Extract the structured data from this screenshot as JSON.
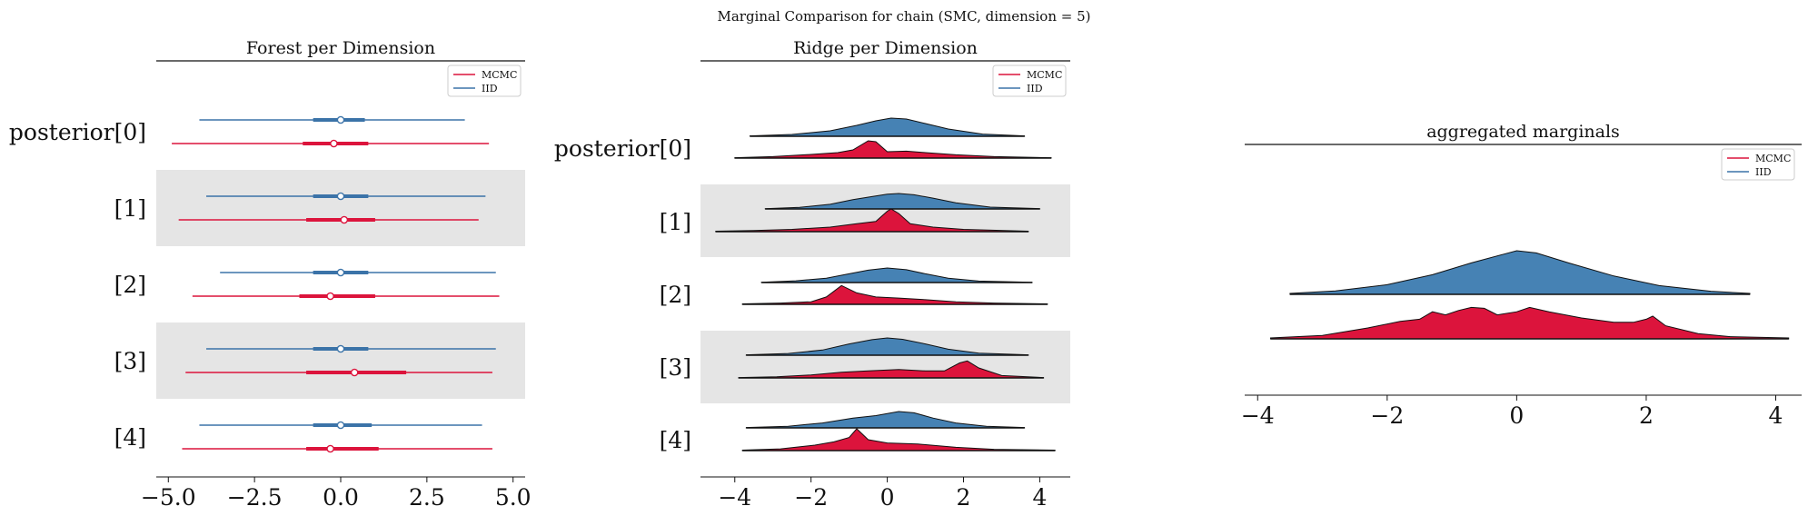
{
  "suptitle": "Marginal Comparison for chain (SMC, dimension = 5)",
  "row_labels": [
    "posterior[0]",
    "[1]",
    "[2]",
    "[3]",
    "[4]"
  ],
  "legend": [
    {
      "label": "MCMC",
      "color": "#dc143c"
    },
    {
      "label": "IID",
      "color": "#3b73a8"
    }
  ],
  "colors": {
    "mcmc": "#dc143c",
    "iid": "#3b73a8",
    "iid_fill": "#4682b4",
    "band": "#e5e5e5"
  },
  "chart_data": [
    {
      "type": "forest",
      "title": "Forest per Dimension",
      "xlim": [
        -5.35,
        5.35
      ],
      "xticks": [
        -5.0,
        -2.5,
        0.0,
        2.5,
        5.0
      ],
      "xtick_labels": [
        "−5.0",
        "−2.5",
        "0.0",
        "2.5",
        "5.0"
      ],
      "categories": [
        "posterior[0]",
        "[1]",
        "[2]",
        "[3]",
        "[4]"
      ],
      "series": [
        {
          "name": "IID",
          "rows": [
            {
              "lo": -4.1,
              "q1": -0.8,
              "med": 0.0,
              "q3": 0.7,
              "hi": 3.6
            },
            {
              "lo": -3.9,
              "q1": -0.8,
              "med": 0.0,
              "q3": 0.8,
              "hi": 4.2
            },
            {
              "lo": -3.5,
              "q1": -0.8,
              "med": 0.0,
              "q3": 0.8,
              "hi": 4.5
            },
            {
              "lo": -3.9,
              "q1": -0.8,
              "med": 0.0,
              "q3": 0.8,
              "hi": 4.5
            },
            {
              "lo": -4.1,
              "q1": -0.8,
              "med": 0.0,
              "q3": 0.9,
              "hi": 4.1
            }
          ]
        },
        {
          "name": "MCMC",
          "rows": [
            {
              "lo": -4.9,
              "q1": -1.1,
              "med": -0.2,
              "q3": 0.8,
              "hi": 4.3
            },
            {
              "lo": -4.7,
              "q1": -1.0,
              "med": 0.1,
              "q3": 1.0,
              "hi": 4.0
            },
            {
              "lo": -4.3,
              "q1": -1.2,
              "med": -0.3,
              "q3": 1.0,
              "hi": 4.6
            },
            {
              "lo": -4.5,
              "q1": -1.0,
              "med": 0.4,
              "q3": 1.9,
              "hi": 4.4
            },
            {
              "lo": -4.6,
              "q1": -1.0,
              "med": -0.3,
              "q3": 1.1,
              "hi": 4.4
            }
          ]
        }
      ]
    },
    {
      "type": "ridge",
      "title": "Ridge per Dimension",
      "xlim": [
        -4.9,
        4.8
      ],
      "xticks": [
        -4,
        -2,
        0,
        2,
        4
      ],
      "xtick_labels": [
        "−4",
        "−2",
        "0",
        "2",
        "4"
      ],
      "categories": [
        "posterior[0]",
        "[1]",
        "[2]",
        "[3]",
        "[4]"
      ],
      "series": [
        {
          "name": "IID",
          "rows": [
            {
              "x": [
                -3.6,
                -2.5,
                -1.5,
                -0.8,
                -0.3,
                0.1,
                0.5,
                1.0,
                1.6,
                2.5,
                3.6
              ],
              "y": [
                0.02,
                0.1,
                0.3,
                0.6,
                0.85,
                1.0,
                0.95,
                0.7,
                0.4,
                0.12,
                0.02
              ]
            },
            {
              "x": [
                -3.2,
                -2.3,
                -1.5,
                -0.9,
                -0.4,
                0.0,
                0.3,
                0.7,
                1.2,
                1.8,
                2.7,
                4.0
              ],
              "y": [
                0.02,
                0.1,
                0.3,
                0.6,
                0.8,
                0.95,
                1.0,
                0.92,
                0.7,
                0.4,
                0.12,
                0.02
              ]
            },
            {
              "x": [
                -3.3,
                -2.4,
                -1.6,
                -1.0,
                -0.5,
                0.0,
                0.5,
                1.0,
                1.6,
                2.4,
                3.8
              ],
              "y": [
                0.02,
                0.12,
                0.3,
                0.6,
                0.85,
                1.0,
                0.88,
                0.6,
                0.3,
                0.1,
                0.02
              ]
            },
            {
              "x": [
                -3.7,
                -2.6,
                -1.7,
                -1.0,
                -0.4,
                0.0,
                0.4,
                1.0,
                1.6,
                2.4,
                3.7
              ],
              "y": [
                0.02,
                0.1,
                0.3,
                0.65,
                0.9,
                1.0,
                0.92,
                0.65,
                0.35,
                0.12,
                0.02
              ]
            },
            {
              "x": [
                -3.7,
                -2.6,
                -1.7,
                -0.9,
                -0.3,
                0.3,
                0.7,
                1.2,
                1.8,
                2.6,
                3.6
              ],
              "y": [
                0.02,
                0.1,
                0.3,
                0.6,
                0.75,
                1.0,
                0.92,
                0.6,
                0.3,
                0.1,
                0.02
              ]
            }
          ]
        },
        {
          "name": "MCMC",
          "rows": [
            {
              "x": [
                -4.0,
                -3.0,
                -2.0,
                -1.3,
                -0.9,
                -0.5,
                -0.3,
                0.0,
                0.5,
                1.0,
                1.8,
                2.8,
                4.3
              ],
              "y": [
                0.02,
                0.08,
                0.2,
                0.3,
                0.45,
                0.95,
                0.9,
                0.35,
                0.38,
                0.3,
                0.18,
                0.08,
                0.02
              ]
            },
            {
              "x": [
                -4.5,
                -3.5,
                -2.5,
                -1.5,
                -0.8,
                -0.3,
                0.0,
                0.1,
                0.3,
                0.6,
                1.2,
                2.0,
                3.7
              ],
              "y": [
                0.02,
                0.05,
                0.1,
                0.2,
                0.35,
                0.45,
                0.9,
                1.0,
                0.8,
                0.35,
                0.2,
                0.1,
                0.02
              ]
            },
            {
              "x": [
                -3.8,
                -2.8,
                -2.0,
                -1.6,
                -1.2,
                -0.8,
                -0.3,
                0.3,
                1.0,
                1.8,
                2.8,
                4.2
              ],
              "y": [
                0.02,
                0.06,
                0.12,
                0.35,
                0.9,
                0.55,
                0.35,
                0.3,
                0.22,
                0.12,
                0.06,
                0.02
              ]
            },
            {
              "x": [
                -3.9,
                -2.9,
                -2.0,
                -1.2,
                -0.5,
                0.3,
                1.0,
                1.5,
                1.9,
                2.1,
                2.4,
                3.0,
                4.1
              ],
              "y": [
                0.02,
                0.06,
                0.15,
                0.28,
                0.35,
                0.42,
                0.35,
                0.35,
                0.75,
                0.85,
                0.5,
                0.12,
                0.02
              ]
            },
            {
              "x": [
                -3.8,
                -2.8,
                -1.9,
                -1.4,
                -1.0,
                -0.8,
                -0.5,
                0.0,
                0.8,
                1.8,
                2.8,
                4.4
              ],
              "y": [
                0.02,
                0.08,
                0.25,
                0.4,
                0.6,
                1.0,
                0.5,
                0.35,
                0.3,
                0.15,
                0.06,
                0.02
              ]
            }
          ]
        }
      ]
    },
    {
      "type": "ridge",
      "title": "aggregated marginals",
      "xlim": [
        -4.2,
        4.4
      ],
      "xticks": [
        -4,
        -2,
        0,
        2,
        4
      ],
      "xtick_labels": [
        "−4",
        "−2",
        "0",
        "2",
        "4"
      ],
      "series": [
        {
          "name": "IID",
          "x": [
            -3.5,
            -2.8,
            -2.0,
            -1.3,
            -0.7,
            -0.2,
            0.0,
            0.3,
            0.8,
            1.5,
            2.2,
            3.0,
            3.6
          ],
          "y": [
            0.02,
            0.08,
            0.22,
            0.45,
            0.72,
            0.92,
            1.0,
            0.95,
            0.72,
            0.42,
            0.2,
            0.07,
            0.02
          ]
        },
        {
          "name": "MCMC",
          "x": [
            -3.8,
            -3.0,
            -2.3,
            -1.8,
            -1.5,
            -1.3,
            -1.1,
            -0.9,
            -0.7,
            -0.5,
            -0.3,
            0.0,
            0.2,
            0.5,
            1.0,
            1.5,
            1.8,
            2.0,
            2.1,
            2.3,
            2.8,
            3.3,
            4.2
          ],
          "y": [
            0.02,
            0.08,
            0.25,
            0.4,
            0.45,
            0.62,
            0.55,
            0.65,
            0.72,
            0.7,
            0.55,
            0.62,
            0.72,
            0.62,
            0.48,
            0.38,
            0.38,
            0.45,
            0.52,
            0.3,
            0.12,
            0.05,
            0.02
          ]
        }
      ]
    }
  ]
}
